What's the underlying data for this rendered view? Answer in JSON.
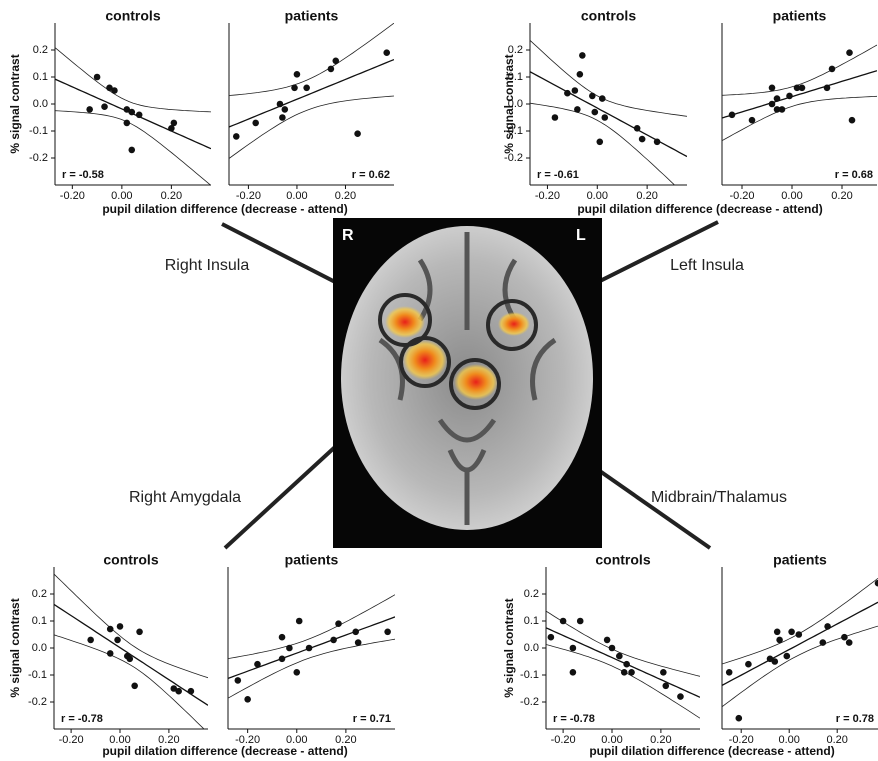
{
  "chart_data": [
    {
      "type": "scatter",
      "title": "controls",
      "annotation": "r = -0.58",
      "x": [
        -0.1,
        -0.05,
        -0.03,
        -0.07,
        -0.13,
        0.02,
        0.04,
        0.07,
        0.02,
        0.04,
        0.21,
        0.2
      ],
      "y": [
        0.1,
        0.06,
        0.05,
        -0.01,
        -0.02,
        -0.02,
        -0.03,
        -0.04,
        -0.07,
        -0.17,
        -0.07,
        -0.09
      ],
      "xlim": [
        -0.27,
        0.36
      ],
      "ylim": [
        -0.3,
        0.3
      ],
      "xticks": [
        {
          "value": -0.2,
          "label": "-0.20"
        },
        {
          "value": 0,
          "label": "0.00"
        },
        {
          "value": 0.2,
          "label": "0.20"
        }
      ],
      "yticks": [
        -0.2,
        -0.1,
        {
          "value": 0,
          "label": "0.0"
        },
        0.1,
        0.2
      ]
    },
    {
      "type": "scatter",
      "title": "patients",
      "annotation": "r = 0.62",
      "x": [
        -0.25,
        -0.17,
        -0.07,
        -0.06,
        -0.05,
        -0.01,
        0.0,
        0.04,
        0.14,
        0.16,
        0.37,
        0.25
      ],
      "y": [
        -0.12,
        -0.07,
        0.0,
        -0.05,
        -0.02,
        0.06,
        0.11,
        0.06,
        0.13,
        0.16,
        0.19,
        -0.11
      ],
      "xlim": [
        -0.28,
        0.4
      ],
      "ylim": [
        -0.3,
        0.3
      ],
      "xticks": [
        {
          "value": -0.2,
          "label": "-0.20"
        },
        {
          "value": 0,
          "label": "0.00"
        },
        {
          "value": 0.2,
          "label": "0.20"
        }
      ]
    },
    {
      "type": "scatter",
      "title": "controls",
      "annotation": "r = -0.61",
      "x": [
        -0.06,
        -0.07,
        -0.09,
        -0.12,
        -0.02,
        0.02,
        -0.08,
        -0.17,
        -0.01,
        0.03,
        0.01,
        0.16,
        0.18,
        0.24
      ],
      "y": [
        0.18,
        0.11,
        0.05,
        0.04,
        0.03,
        0.02,
        -0.02,
        -0.05,
        -0.03,
        -0.05,
        -0.14,
        -0.09,
        -0.13,
        -0.14
      ],
      "xlim": [
        -0.27,
        0.36
      ],
      "ylim": [
        -0.3,
        0.3
      ],
      "xticks": [
        {
          "value": -0.2,
          "label": "-0.20"
        },
        {
          "value": 0,
          "label": "0.00"
        },
        {
          "value": 0.2,
          "label": "0.20"
        }
      ],
      "yticks": [
        -0.2,
        -0.1,
        {
          "value": 0,
          "label": "0.0"
        },
        0.1,
        0.2
      ]
    },
    {
      "type": "scatter",
      "title": "patients",
      "annotation": "r = 0.68",
      "x": [
        -0.24,
        -0.16,
        -0.08,
        -0.06,
        -0.06,
        -0.04,
        -0.01,
        0.02,
        0.04,
        0.14,
        0.16,
        0.23,
        0.24,
        -0.08
      ],
      "y": [
        -0.04,
        -0.06,
        0.0,
        -0.02,
        0.02,
        -0.02,
        0.03,
        0.06,
        0.06,
        0.06,
        0.13,
        0.19,
        -0.06,
        0.06
      ],
      "xlim": [
        -0.28,
        0.34
      ],
      "ylim": [
        -0.3,
        0.3
      ],
      "xticks": [
        {
          "value": -0.2,
          "label": "-0.20"
        },
        {
          "value": 0,
          "label": "0.00"
        },
        {
          "value": 0.2,
          "label": "0.20"
        }
      ]
    },
    {
      "type": "scatter",
      "title": "controls",
      "annotation": "r = -0.78",
      "x": [
        -0.12,
        -0.04,
        0.0,
        -0.04,
        -0.01,
        0.03,
        0.04,
        0.08,
        0.06,
        0.22,
        0.24,
        0.29
      ],
      "y": [
        0.03,
        0.07,
        0.08,
        -0.02,
        0.03,
        -0.03,
        -0.04,
        0.06,
        -0.14,
        -0.15,
        -0.16,
        -0.16
      ],
      "xlim": [
        -0.27,
        0.36
      ],
      "ylim": [
        -0.3,
        0.3
      ],
      "xticks": [
        {
          "value": -0.2,
          "label": "-0.20"
        },
        {
          "value": 0,
          "label": "0.00"
        },
        {
          "value": 0.2,
          "label": "0.20"
        }
      ],
      "yticks": [
        -0.2,
        -0.1,
        {
          "value": 0,
          "label": "0.0"
        },
        0.1,
        0.2
      ]
    },
    {
      "type": "scatter",
      "title": "patients",
      "annotation": "r = 0.71",
      "x": [
        -0.24,
        -0.2,
        -0.16,
        -0.06,
        -0.06,
        -0.03,
        0.0,
        0.01,
        0.05,
        0.15,
        0.17,
        0.24,
        0.25,
        0.37
      ],
      "y": [
        -0.12,
        -0.19,
        -0.06,
        -0.04,
        0.04,
        0.0,
        -0.09,
        0.1,
        0.0,
        0.03,
        0.09,
        0.06,
        0.02,
        0.06
      ],
      "xlim": [
        -0.28,
        0.4
      ],
      "ylim": [
        -0.3,
        0.3
      ],
      "xticks": [
        {
          "value": -0.2,
          "label": "-0.20"
        },
        {
          "value": 0,
          "label": "0.00"
        },
        {
          "value": 0.2,
          "label": "0.20"
        }
      ]
    },
    {
      "type": "scatter",
      "title": "controls",
      "annotation": "r = -0.78",
      "x": [
        -0.25,
        -0.2,
        -0.13,
        -0.16,
        -0.16,
        -0.02,
        0.0,
        0.03,
        0.06,
        0.05,
        0.08,
        0.21,
        0.22,
        0.28
      ],
      "y": [
        0.04,
        0.1,
        0.1,
        0.0,
        -0.09,
        0.03,
        0.0,
        -0.03,
        -0.06,
        -0.09,
        -0.09,
        -0.09,
        -0.14,
        -0.18
      ],
      "xlim": [
        -0.27,
        0.36
      ],
      "ylim": [
        -0.3,
        0.3
      ],
      "xticks": [
        {
          "value": -0.2,
          "label": "-0.20"
        },
        {
          "value": 0,
          "label": "0.00"
        },
        {
          "value": 0.2,
          "label": "0.20"
        }
      ],
      "yticks": [
        -0.2,
        -0.1,
        {
          "value": 0,
          "label": "0.0"
        },
        0.1,
        0.2
      ]
    },
    {
      "type": "scatter",
      "title": "patients",
      "annotation": "r = 0.78",
      "x": [
        -0.25,
        -0.21,
        -0.17,
        -0.08,
        -0.06,
        -0.05,
        -0.04,
        -0.01,
        0.01,
        0.04,
        0.14,
        0.16,
        0.23,
        0.25,
        0.37
      ],
      "y": [
        -0.09,
        -0.26,
        -0.06,
        -0.04,
        -0.05,
        0.06,
        0.03,
        -0.03,
        0.06,
        0.05,
        0.02,
        0.08,
        0.04,
        0.02,
        0.24
      ],
      "xlim": [
        -0.28,
        0.37
      ],
      "ylim": [
        -0.3,
        0.3
      ],
      "xticks": [
        {
          "value": -0.2,
          "label": "-0.20"
        },
        {
          "value": 0,
          "label": "0.00"
        },
        {
          "value": 0.2,
          "label": "0.20"
        }
      ]
    }
  ],
  "groups": [
    {
      "region": "Right Insula",
      "y_label": "% signal contrast",
      "x_label": "pupil dilation difference (decrease - attend)"
    },
    {
      "region": "Left Insula",
      "y_label": "% signal contrast",
      "x_label": "pupil dilation difference (decrease - attend)"
    },
    {
      "region": "Right Amygdala",
      "y_label": "% signal contrast",
      "x_label": "pupil dilation difference (decrease - attend)"
    },
    {
      "region": "Midbrain/Thalamus",
      "y_label": "% signal contrast",
      "x_label": "pupil dilation difference (decrease - attend)"
    }
  ],
  "brain": {
    "right": "R",
    "left": "L"
  }
}
